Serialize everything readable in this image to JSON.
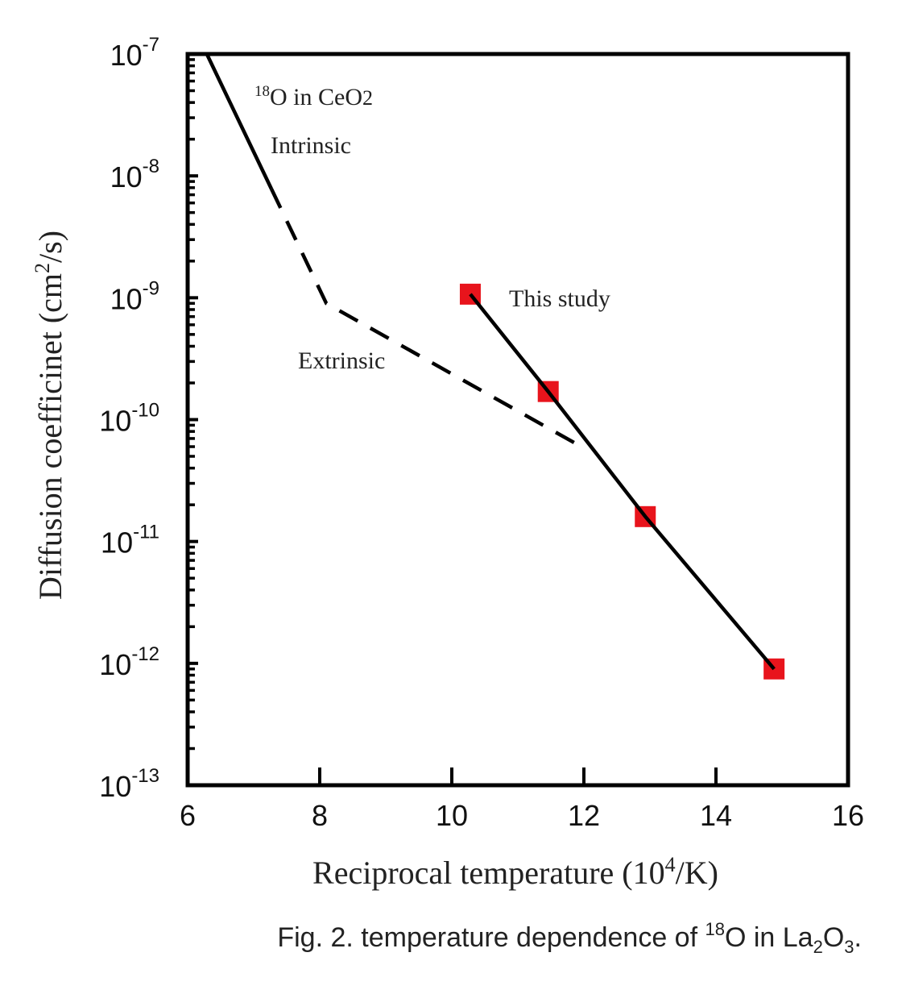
{
  "chart_data": {
    "type": "line",
    "title": "",
    "xlabel": "Reciprocal temperature (10⁴/K)",
    "ylabel": "Diffusion coefficinet (cm²/s)",
    "xlim": [
      6,
      16
    ],
    "ylim": [
      1e-13,
      1e-07
    ],
    "yscale": "log",
    "x_ticks": [
      6,
      8,
      10,
      12,
      14,
      16
    ],
    "x_tick_labels": [
      "6",
      "8",
      "10",
      "12",
      "14",
      "16"
    ],
    "y_ticks": [
      1e-07,
      1e-08,
      1e-09,
      1e-10,
      1e-11,
      1e-12,
      1e-13
    ],
    "y_tick_labels": [
      {
        "base": "10",
        "exp": "-7"
      },
      {
        "base": "10",
        "exp": "-8"
      },
      {
        "base": "10",
        "exp": "-9"
      },
      {
        "base": "10",
        "exp": "-10"
      },
      {
        "base": "10",
        "exp": "-11"
      },
      {
        "base": "10",
        "exp": "-12"
      },
      {
        "base": "10",
        "exp": "-13"
      }
    ],
    "grid": false,
    "series": [
      {
        "name": "This study",
        "style": "markers+solid-line",
        "marker": "square",
        "color": "#e8141c",
        "line_color": "#000000",
        "x": [
          10.28,
          11.46,
          12.93,
          14.88
        ],
        "y": [
          1.07e-09,
          1.7e-10,
          1.6e-11,
          9e-13
        ]
      },
      {
        "name": "18O in CeO2 intrinsic",
        "style": "solid",
        "color": "#000000",
        "x": [
          6.29,
          7.27
        ],
        "y": [
          1e-07,
          7.8e-09
        ]
      },
      {
        "name": "18O in CeO2 extrinsic",
        "style": "dashed",
        "color": "#000000",
        "x": [
          7.27,
          8.1,
          11.96
        ],
        "y": [
          7.8e-09,
          9e-10,
          6e-11
        ]
      }
    ],
    "annotations": {
      "ceo2_mass": "18",
      "ceo2_label": "O in CeO",
      "ceo2_sub": "2",
      "intrinsic": "Intrinsic",
      "extrinsic": "Extrinsic",
      "this_study": "This study"
    },
    "xlabel_parts": {
      "pre": "Reciprocal temperature (10",
      "sup": "4",
      "post": "/K)"
    },
    "ylabel_parts": {
      "pre": "Diffusion coefficinet (cm",
      "sup": "2",
      "post": "/s)"
    }
  },
  "caption": {
    "prefix": "Fig. 2. temperature dependence of ",
    "mass": "18",
    "element": "O in La",
    "sub1": "2",
    "mid": "O",
    "sub2": "3",
    "suffix": "."
  }
}
